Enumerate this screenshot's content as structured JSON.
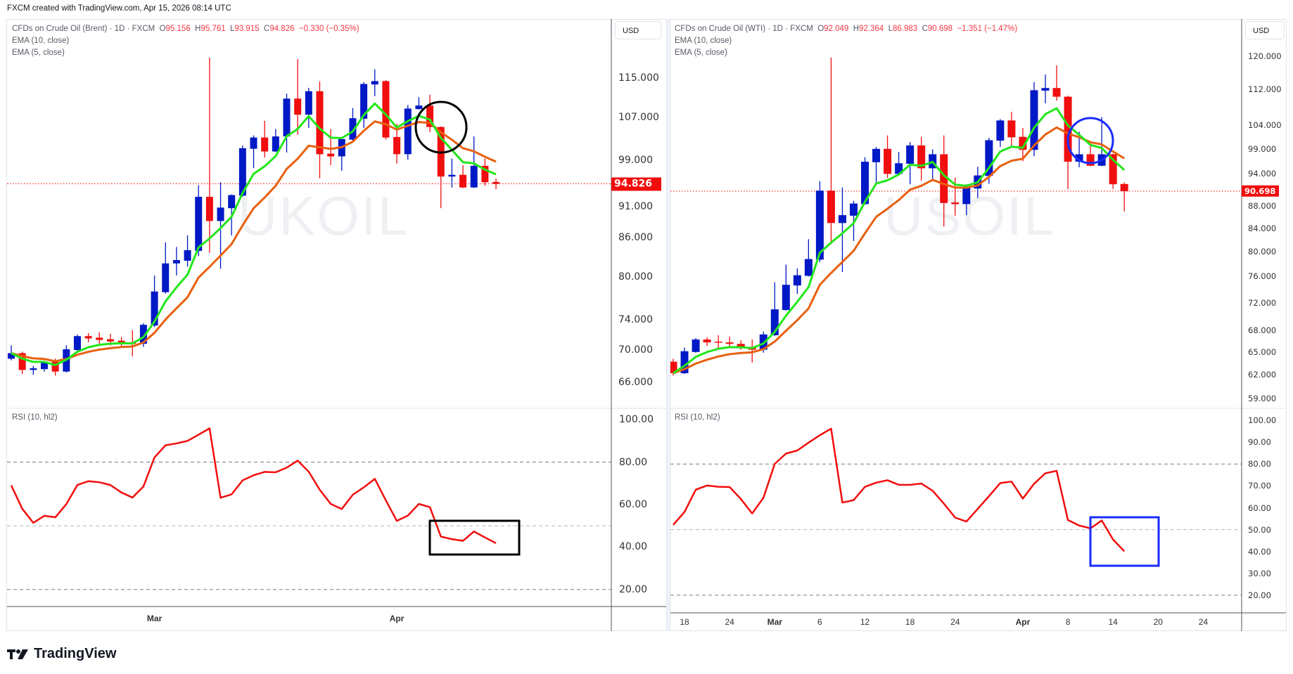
{
  "header": {
    "text": "FXCM created with TradingView.com, Apr 15, 2026 08:14 UTC"
  },
  "logo": {
    "text": "TradingView"
  },
  "colors": {
    "up": "#0019c6",
    "down": "#f00e0e",
    "ema10": "#e8600f",
    "ema5": "#22e61a",
    "rsi": "#f20d0d",
    "accent_left": "#000000",
    "accent_right": "#1a2cff"
  },
  "left": {
    "watermark": "UKOIL",
    "legend": {
      "symbol": "CFDs on Crude Oil (Brent) · 1D · FXCM",
      "o_label": "O",
      "o": "95.156",
      "h_label": "H",
      "h": "95.761",
      "l_label": "L",
      "l": "93.915",
      "c_label": "C",
      "c": "94.826",
      "change": "−0.330 (−0.35%)",
      "ema10": "EMA (10, close)",
      "ema5": "EMA (5, close)"
    },
    "currency": "USD",
    "price_labels": [
      "115.000",
      "107.000",
      "99.000",
      "91.000",
      "86.000",
      "80.000",
      "74.000",
      "70.000",
      "66.000"
    ],
    "last_price": "94.826",
    "rsi_title": "RSI (10, hl2)",
    "rsi_labels": [
      "100.00",
      "80.00",
      "60.00",
      "40.00",
      "20.00"
    ],
    "time_labels": [
      {
        "label": "Mar",
        "bar": 13
      },
      {
        "label": "Apr",
        "bar": 35
      }
    ]
  },
  "right": {
    "watermark": "USOIL",
    "legend": {
      "symbol": "CFDs on Crude Oil (WTI) · 1D · FXCM",
      "o_label": "O",
      "o": "92.049",
      "h_label": "H",
      "h": "92.364",
      "l_label": "L",
      "l": "86.983",
      "c_label": "C",
      "c": "90.698",
      "change": "−1.351 (−1.47%)",
      "ema10": "EMA (10, close)",
      "ema5": "EMA (5, close)"
    },
    "currency": "USD",
    "price_labels": [
      "120.000",
      "112.000",
      "104.000",
      "99.000",
      "94.000",
      "88.000",
      "84.000",
      "80.000",
      "76.000",
      "72.000",
      "68.000",
      "65.000",
      "62.000",
      "59.000"
    ],
    "last_price": "90.698",
    "rsi_title": "RSI (10, hl2)",
    "rsi_labels": [
      "100.00",
      "90.00",
      "80.00",
      "70.00",
      "60.00",
      "50.00",
      "40.00",
      "30.00",
      "20.00"
    ],
    "time_labels": [
      {
        "label": "18",
        "bar": 1
      },
      {
        "label": "24",
        "bar": 5
      },
      {
        "label": "Mar",
        "bar": 9
      },
      {
        "label": "6",
        "bar": 13
      },
      {
        "label": "12",
        "bar": 17
      },
      {
        "label": "18",
        "bar": 21
      },
      {
        "label": "24",
        "bar": 25
      },
      {
        "label": "Apr",
        "bar": 31
      },
      {
        "label": "8",
        "bar": 35
      },
      {
        "label": "14",
        "bar": 39
      },
      {
        "label": "20",
        "bar": 43
      },
      {
        "label": "24",
        "bar": 47
      }
    ]
  },
  "chart_data": [
    {
      "type": "candlestick",
      "title": "CFDs on Crude Oil (Brent) · 1D · FXCM",
      "scale": "log",
      "ohlc": [
        [
          68.9,
          70.6,
          68.7,
          69.6
        ],
        [
          69.6,
          69.8,
          67.0,
          67.5
        ],
        [
          67.5,
          68.0,
          66.9,
          67.7
        ],
        [
          67.6,
          68.6,
          67.3,
          68.5
        ],
        [
          68.5,
          68.9,
          66.8,
          67.3
        ],
        [
          67.3,
          70.6,
          67.2,
          70.1
        ],
        [
          70.0,
          72.0,
          69.9,
          71.8
        ],
        [
          71.8,
          72.2,
          71.0,
          71.5
        ],
        [
          71.6,
          72.3,
          70.8,
          71.3
        ],
        [
          71.4,
          72.1,
          70.6,
          71.1
        ],
        [
          71.2,
          71.7,
          70.4,
          71.0
        ],
        [
          71.0,
          72.6,
          69.2,
          70.8
        ],
        [
          70.8,
          73.5,
          70.4,
          73.3
        ],
        [
          73.2,
          80.2,
          73.0,
          77.9
        ],
        [
          77.8,
          85.2,
          77.6,
          82.0
        ],
        [
          82.0,
          84.5,
          80.2,
          82.5
        ],
        [
          82.4,
          86.3,
          81.5,
          84.0
        ],
        [
          83.9,
          94.6,
          83.1,
          92.6
        ],
        [
          92.6,
          119.4,
          83.6,
          88.6
        ],
        [
          88.6,
          95.1,
          81.2,
          90.8
        ],
        [
          90.7,
          93.0,
          86.3,
          92.9
        ],
        [
          92.8,
          101.7,
          92.6,
          101.2
        ],
        [
          101.1,
          103.6,
          97.6,
          103.2
        ],
        [
          103.2,
          106.4,
          99.5,
          100.6
        ],
        [
          100.6,
          104.8,
          100.5,
          103.4
        ],
        [
          103.4,
          111.8,
          100.4,
          110.8
        ],
        [
          110.8,
          119.1,
          103.7,
          107.6
        ],
        [
          107.6,
          113.0,
          105.0,
          112.3
        ],
        [
          112.3,
          114.3,
          95.8,
          100.1
        ],
        [
          100.2,
          104.8,
          98.1,
          99.7
        ],
        [
          99.7,
          103.0,
          97.1,
          102.9
        ],
        [
          102.8,
          108.9,
          102.6,
          106.9
        ],
        [
          106.8,
          114.2,
          105.0,
          113.8
        ],
        [
          113.7,
          116.9,
          111.3,
          114.4
        ],
        [
          114.4,
          114.6,
          102.8,
          103.2
        ],
        [
          103.3,
          105.8,
          98.4,
          100.1
        ],
        [
          100.1,
          109.5,
          99.1,
          108.8
        ],
        [
          108.7,
          111.1,
          108.6,
          109.4
        ],
        [
          109.4,
          111.6,
          104.2,
          105.2
        ],
        [
          105.2,
          105.3,
          90.7,
          96.1
        ],
        [
          96.1,
          99.3,
          94.2,
          96.4
        ],
        [
          96.4,
          98.1,
          94.1,
          94.2
        ],
        [
          94.2,
          103.4,
          94.1,
          98.0
        ],
        [
          98.0,
          99.3,
          94.5,
          95.1
        ],
        [
          95.156,
          95.761,
          93.915,
          94.826
        ]
      ],
      "indicators": [
        "EMA (10, close)",
        "EMA (5, close)"
      ],
      "rsi": [
        69,
        58,
        51.4,
        54.7,
        54,
        60.2,
        69.2,
        71,
        70.5,
        69.2,
        65.7,
        63.3,
        68.5,
        82.2,
        87.9,
        88.8,
        90,
        92.9,
        95.9,
        63.2,
        64.8,
        71.4,
        73.8,
        75.4,
        75.2,
        77.4,
        80.7,
        75.5,
        67,
        60.3,
        57.9,
        64.6,
        68.1,
        72.1,
        62,
        52.3,
        54.8,
        60.3,
        58.8,
        44.9,
        43.7,
        42.9,
        47.3,
        44.5,
        41.8
      ],
      "rsi_levels": [
        80,
        50,
        20
      ],
      "rsi_range": [
        20,
        100
      ],
      "price_range": [
        66,
        115
      ]
    },
    {
      "type": "candlestick",
      "title": "CFDs on Crude Oil (WTI) · 1D · FXCM",
      "scale": "log",
      "ohlc": [
        [
          63.7,
          64.1,
          61.9,
          62.2
        ],
        [
          62.2,
          65.6,
          62.1,
          65.1
        ],
        [
          65.0,
          66.9,
          64.9,
          66.7
        ],
        [
          66.7,
          67.0,
          65.8,
          66.3
        ],
        [
          66.4,
          67.3,
          65.5,
          66.3
        ],
        [
          66.3,
          67.1,
          65.7,
          66.1
        ],
        [
          66.1,
          66.6,
          65.3,
          65.6
        ],
        [
          65.7,
          66.7,
          63.6,
          65.3
        ],
        [
          65.3,
          67.8,
          64.9,
          67.4
        ],
        [
          67.3,
          75.1,
          67.2,
          71.0
        ],
        [
          70.9,
          77.9,
          70.8,
          74.7
        ],
        [
          74.6,
          77.3,
          73.3,
          76.2
        ],
        [
          76.1,
          82.1,
          76.0,
          78.8
        ],
        [
          78.7,
          92.6,
          78.3,
          90.8
        ],
        [
          90.8,
          119.6,
          81.3,
          84.9
        ],
        [
          84.9,
          91.4,
          76.7,
          86.3
        ],
        [
          86.2,
          88.9,
          81.8,
          88.4
        ],
        [
          88.3,
          97.3,
          88.2,
          96.4
        ],
        [
          96.3,
          99.4,
          92.3,
          99.0
        ],
        [
          99.0,
          101.8,
          93.2,
          94.0
        ],
        [
          94.0,
          98.4,
          93.9,
          96.1
        ],
        [
          96.0,
          100.4,
          92.0,
          99.7
        ],
        [
          99.7,
          101.5,
          92.7,
          95.1
        ],
        [
          95.1,
          98.9,
          92.6,
          97.9
        ],
        [
          97.9,
          101.8,
          84.3,
          88.5
        ],
        [
          88.6,
          93.3,
          86.2,
          88.3
        ],
        [
          88.3,
          92.0,
          86.3,
          91.3
        ],
        [
          91.2,
          95.4,
          89.4,
          93.7
        ],
        [
          93.6,
          101.3,
          92.1,
          100.8
        ],
        [
          100.7,
          105.3,
          99.4,
          105.0
        ],
        [
          105.0,
          106.9,
          99.6,
          101.4
        ],
        [
          101.5,
          103.4,
          96.5,
          98.8
        ],
        [
          98.8,
          113.7,
          97.5,
          111.8
        ],
        [
          111.7,
          115.5,
          108.8,
          112.3
        ],
        [
          112.3,
          117.7,
          109.4,
          110.3
        ],
        [
          110.3,
          110.5,
          91.1,
          96.4
        ],
        [
          96.4,
          102.6,
          95.3,
          97.9
        ],
        [
          97.9,
          99.7,
          95.5,
          95.6
        ],
        [
          95.6,
          105.7,
          95.5,
          97.9
        ],
        [
          97.9,
          98.0,
          91.1,
          92.0
        ],
        [
          92.049,
          92.364,
          86.983,
          90.698
        ]
      ],
      "indicators": [
        "EMA (10, close)",
        "EMA (5, close)"
      ],
      "rsi": [
        52.2,
        58.1,
        68.3,
        70.2,
        69.6,
        69.5,
        64,
        57.4,
        64.6,
        80.1,
        84.8,
        86.2,
        89.8,
        93.2,
        96.2,
        62.4,
        63.5,
        69.6,
        71.5,
        72.6,
        70.5,
        70.5,
        71.1,
        67.8,
        61.9,
        55.5,
        53.7,
        59.5,
        65.3,
        71.3,
        72,
        64.2,
        71,
        75.8,
        76.9,
        54.4,
        51.9,
        50.6,
        54.2,
        45.5,
        40.1
      ],
      "rsi_levels": [
        80,
        50,
        20
      ],
      "rsi_range": [
        20,
        100
      ],
      "price_range": [
        59,
        120
      ]
    }
  ]
}
